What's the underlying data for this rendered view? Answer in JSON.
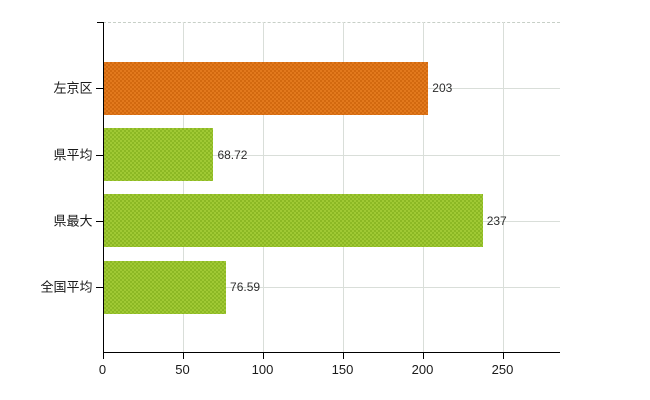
{
  "chart_data": {
    "type": "bar",
    "orientation": "horizontal",
    "title": "",
    "xlabel": "",
    "ylabel": "",
    "categories": [
      "左京区",
      "県平均",
      "県最大",
      "全国平均"
    ],
    "values": [
      203,
      68.72,
      237,
      76.59
    ],
    "value_labels": [
      "203",
      "68.72",
      "237",
      "76.59"
    ],
    "xticks": [
      0,
      50,
      100,
      150,
      200,
      250
    ],
    "xtick_labels": [
      "0",
      "50",
      "100",
      "150",
      "200",
      "250"
    ],
    "xlim": [
      0,
      286
    ],
    "grid": "on",
    "legend": "none",
    "bar_styles": [
      {
        "c1": "#e2791d",
        "c2": "#d2690f"
      },
      {
        "c1": "#a0c934",
        "c2": "#8cb824"
      },
      {
        "c1": "#a0c934",
        "c2": "#8cb824"
      },
      {
        "c1": "#a0c934",
        "c2": "#8cb824"
      }
    ],
    "colors": {
      "orange_bar": "#e0771c",
      "green_bar": "#9cc42f",
      "gridline": "#d9ded9",
      "top_border_dashed": "#c7cfc7",
      "axis": "#000000",
      "category_text": "#1a1a1a",
      "value_text": "#2e2e2e"
    }
  }
}
